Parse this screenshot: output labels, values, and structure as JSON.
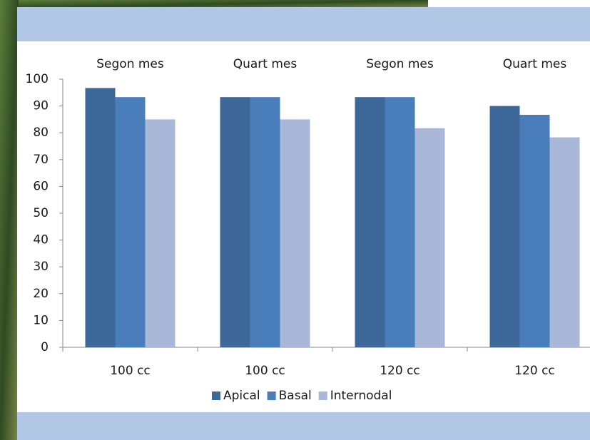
{
  "chart_data": {
    "type": "bar",
    "categories": [
      "100 cc",
      "100 cc",
      "120 cc",
      "120 cc"
    ],
    "annotations": [
      "Segon mes",
      "Quart mes",
      "Segon mes",
      "Quart mes"
    ],
    "series": [
      {
        "name": "Apical",
        "color": "#3d6899",
        "values": [
          96.7,
          93.3,
          93.3,
          90
        ]
      },
      {
        "name": "Basal",
        "color": "#4a7ebb",
        "values": [
          93.3,
          93.3,
          93.3,
          86.7
        ]
      },
      {
        "name": "Internodal",
        "color": "#a9b8d8",
        "values": [
          85,
          85,
          81.7,
          78.3
        ]
      }
    ],
    "ylim": [
      0,
      100
    ],
    "yticks": [
      0,
      10,
      20,
      30,
      40,
      50,
      60,
      70,
      80,
      90,
      100
    ],
    "legend": "bottom"
  }
}
